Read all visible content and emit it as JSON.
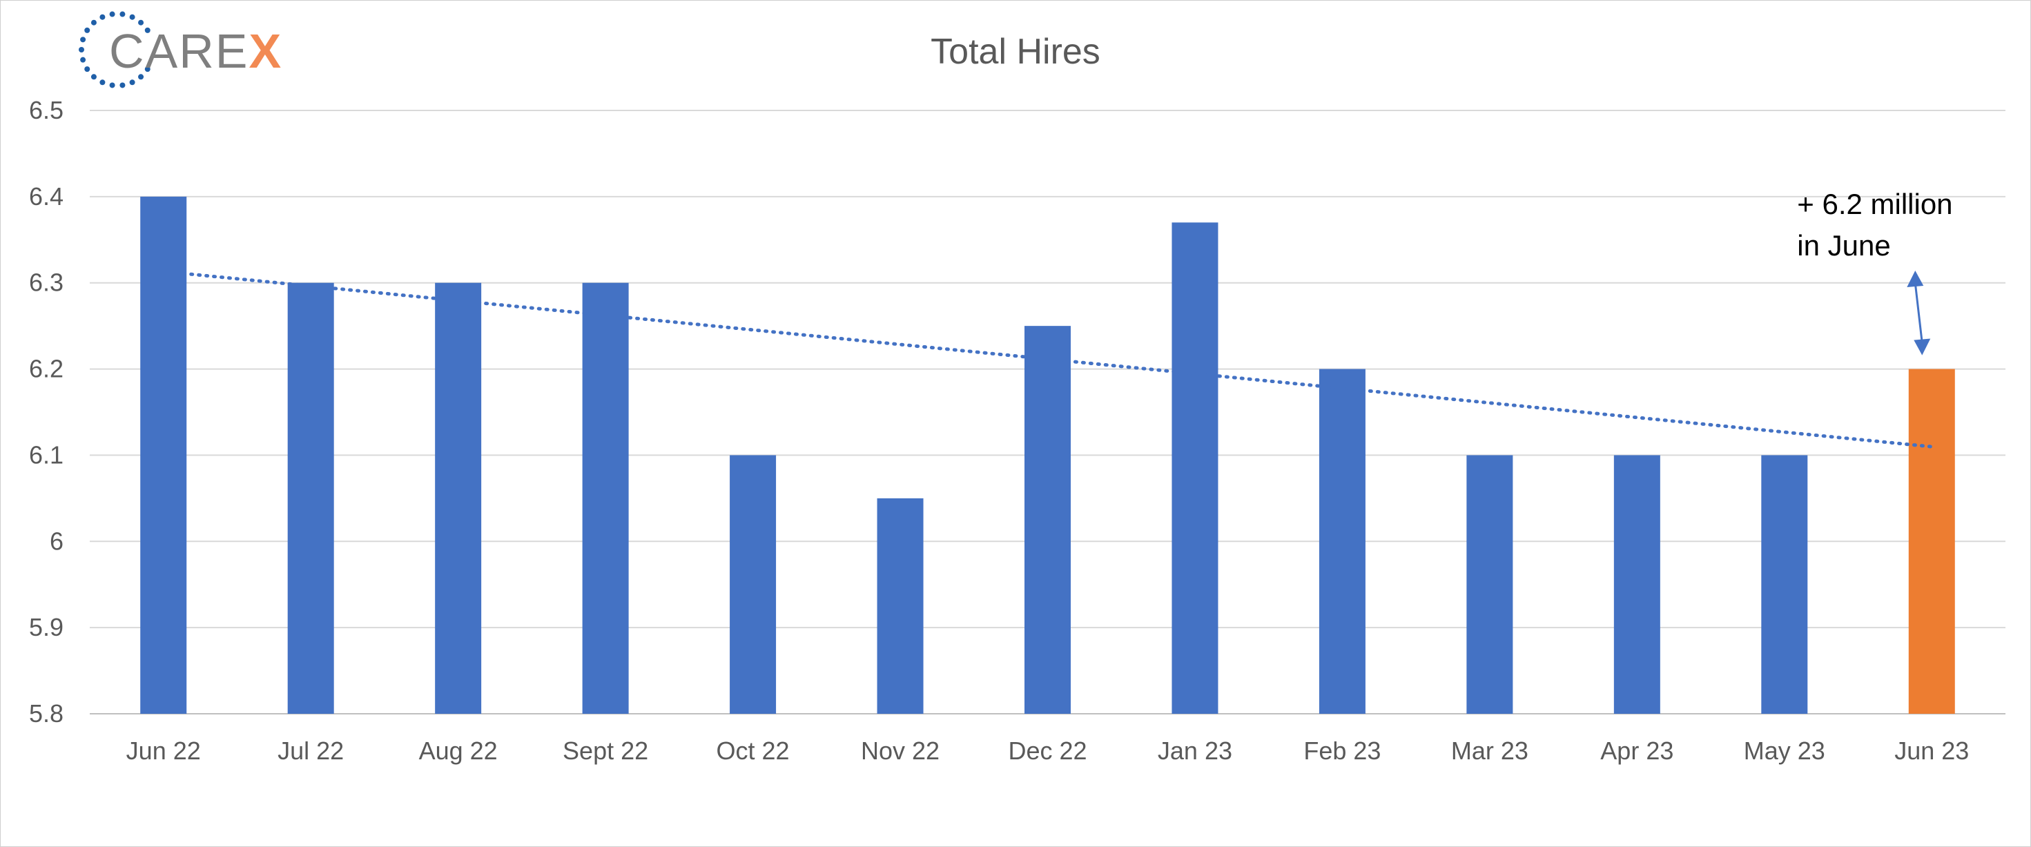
{
  "logo": {
    "text_main": "CARE",
    "text_accent": "X",
    "dot_color": "#1f5fa8",
    "accent_color": "#f28a53"
  },
  "chart_data": {
    "type": "bar",
    "title": "Total Hires",
    "xlabel": "",
    "ylabel": "",
    "ylim": [
      5.8,
      6.5
    ],
    "yticks": [
      5.8,
      5.9,
      6,
      6.1,
      6.2,
      6.3,
      6.4,
      6.5
    ],
    "ytick_labels": [
      "5.8",
      "5.9",
      "6",
      "6.1",
      "6.2",
      "6.3",
      "6.4",
      "6.5"
    ],
    "grid": true,
    "categories": [
      "Jun 22",
      "Jul 22",
      "Aug 22",
      "Sept 22",
      "Oct 22",
      "Nov 22",
      "Dec 22",
      "Jan 23",
      "Feb 23",
      "Mar 23",
      "Apr 23",
      "May 23",
      "Jun 23"
    ],
    "values": [
      6.4,
      6.3,
      6.3,
      6.3,
      6.1,
      6.05,
      6.25,
      6.37,
      6.2,
      6.1,
      6.1,
      6.1,
      6.2
    ],
    "bar_color": "#4472c4",
    "highlight_color": "#ed7d31",
    "highlight_index": 12,
    "trendline": {
      "type": "linear",
      "style": "dotted",
      "color": "#4472c4",
      "start": 6.31,
      "end": 6.11
    },
    "annotation": {
      "lines": [
        "+ 6.2 million",
        "in June"
      ],
      "target_category": "Jun 23"
    }
  }
}
